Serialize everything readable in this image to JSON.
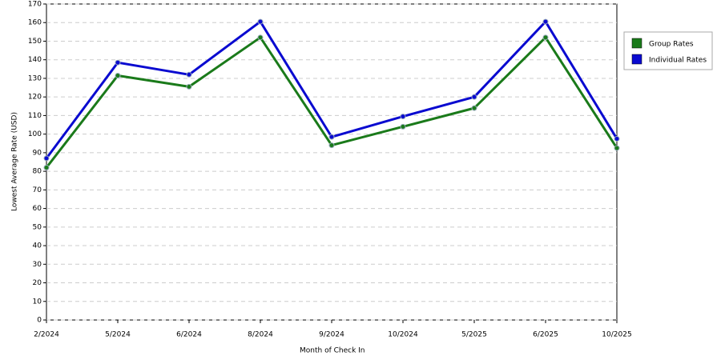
{
  "chart_data": {
    "type": "line",
    "x_label": "Month of Check In",
    "y_label": "Lowest Average Rate (USD)",
    "categories": [
      "2/2024",
      "5/2024",
      "6/2024",
      "8/2024",
      "9/2024",
      "10/2024",
      "5/2025",
      "6/2025",
      "10/2025"
    ],
    "series": [
      {
        "name": "Group Rates",
        "color": "#1a7a1a",
        "values": [
          82,
          131.5,
          125.5,
          152,
          94,
          104,
          114,
          152,
          92.5
        ]
      },
      {
        "name": "Individual Rates",
        "color": "#0a0ad0",
        "values": [
          87,
          138.5,
          132,
          160.5,
          98.5,
          109.5,
          120,
          160.5,
          97.5
        ]
      }
    ],
    "ylim": [
      0,
      170
    ],
    "yticks": [
      0,
      10,
      20,
      30,
      40,
      50,
      60,
      70,
      80,
      90,
      100,
      110,
      120,
      130,
      140,
      150,
      160,
      170
    ],
    "grid": true,
    "legend": "right"
  }
}
